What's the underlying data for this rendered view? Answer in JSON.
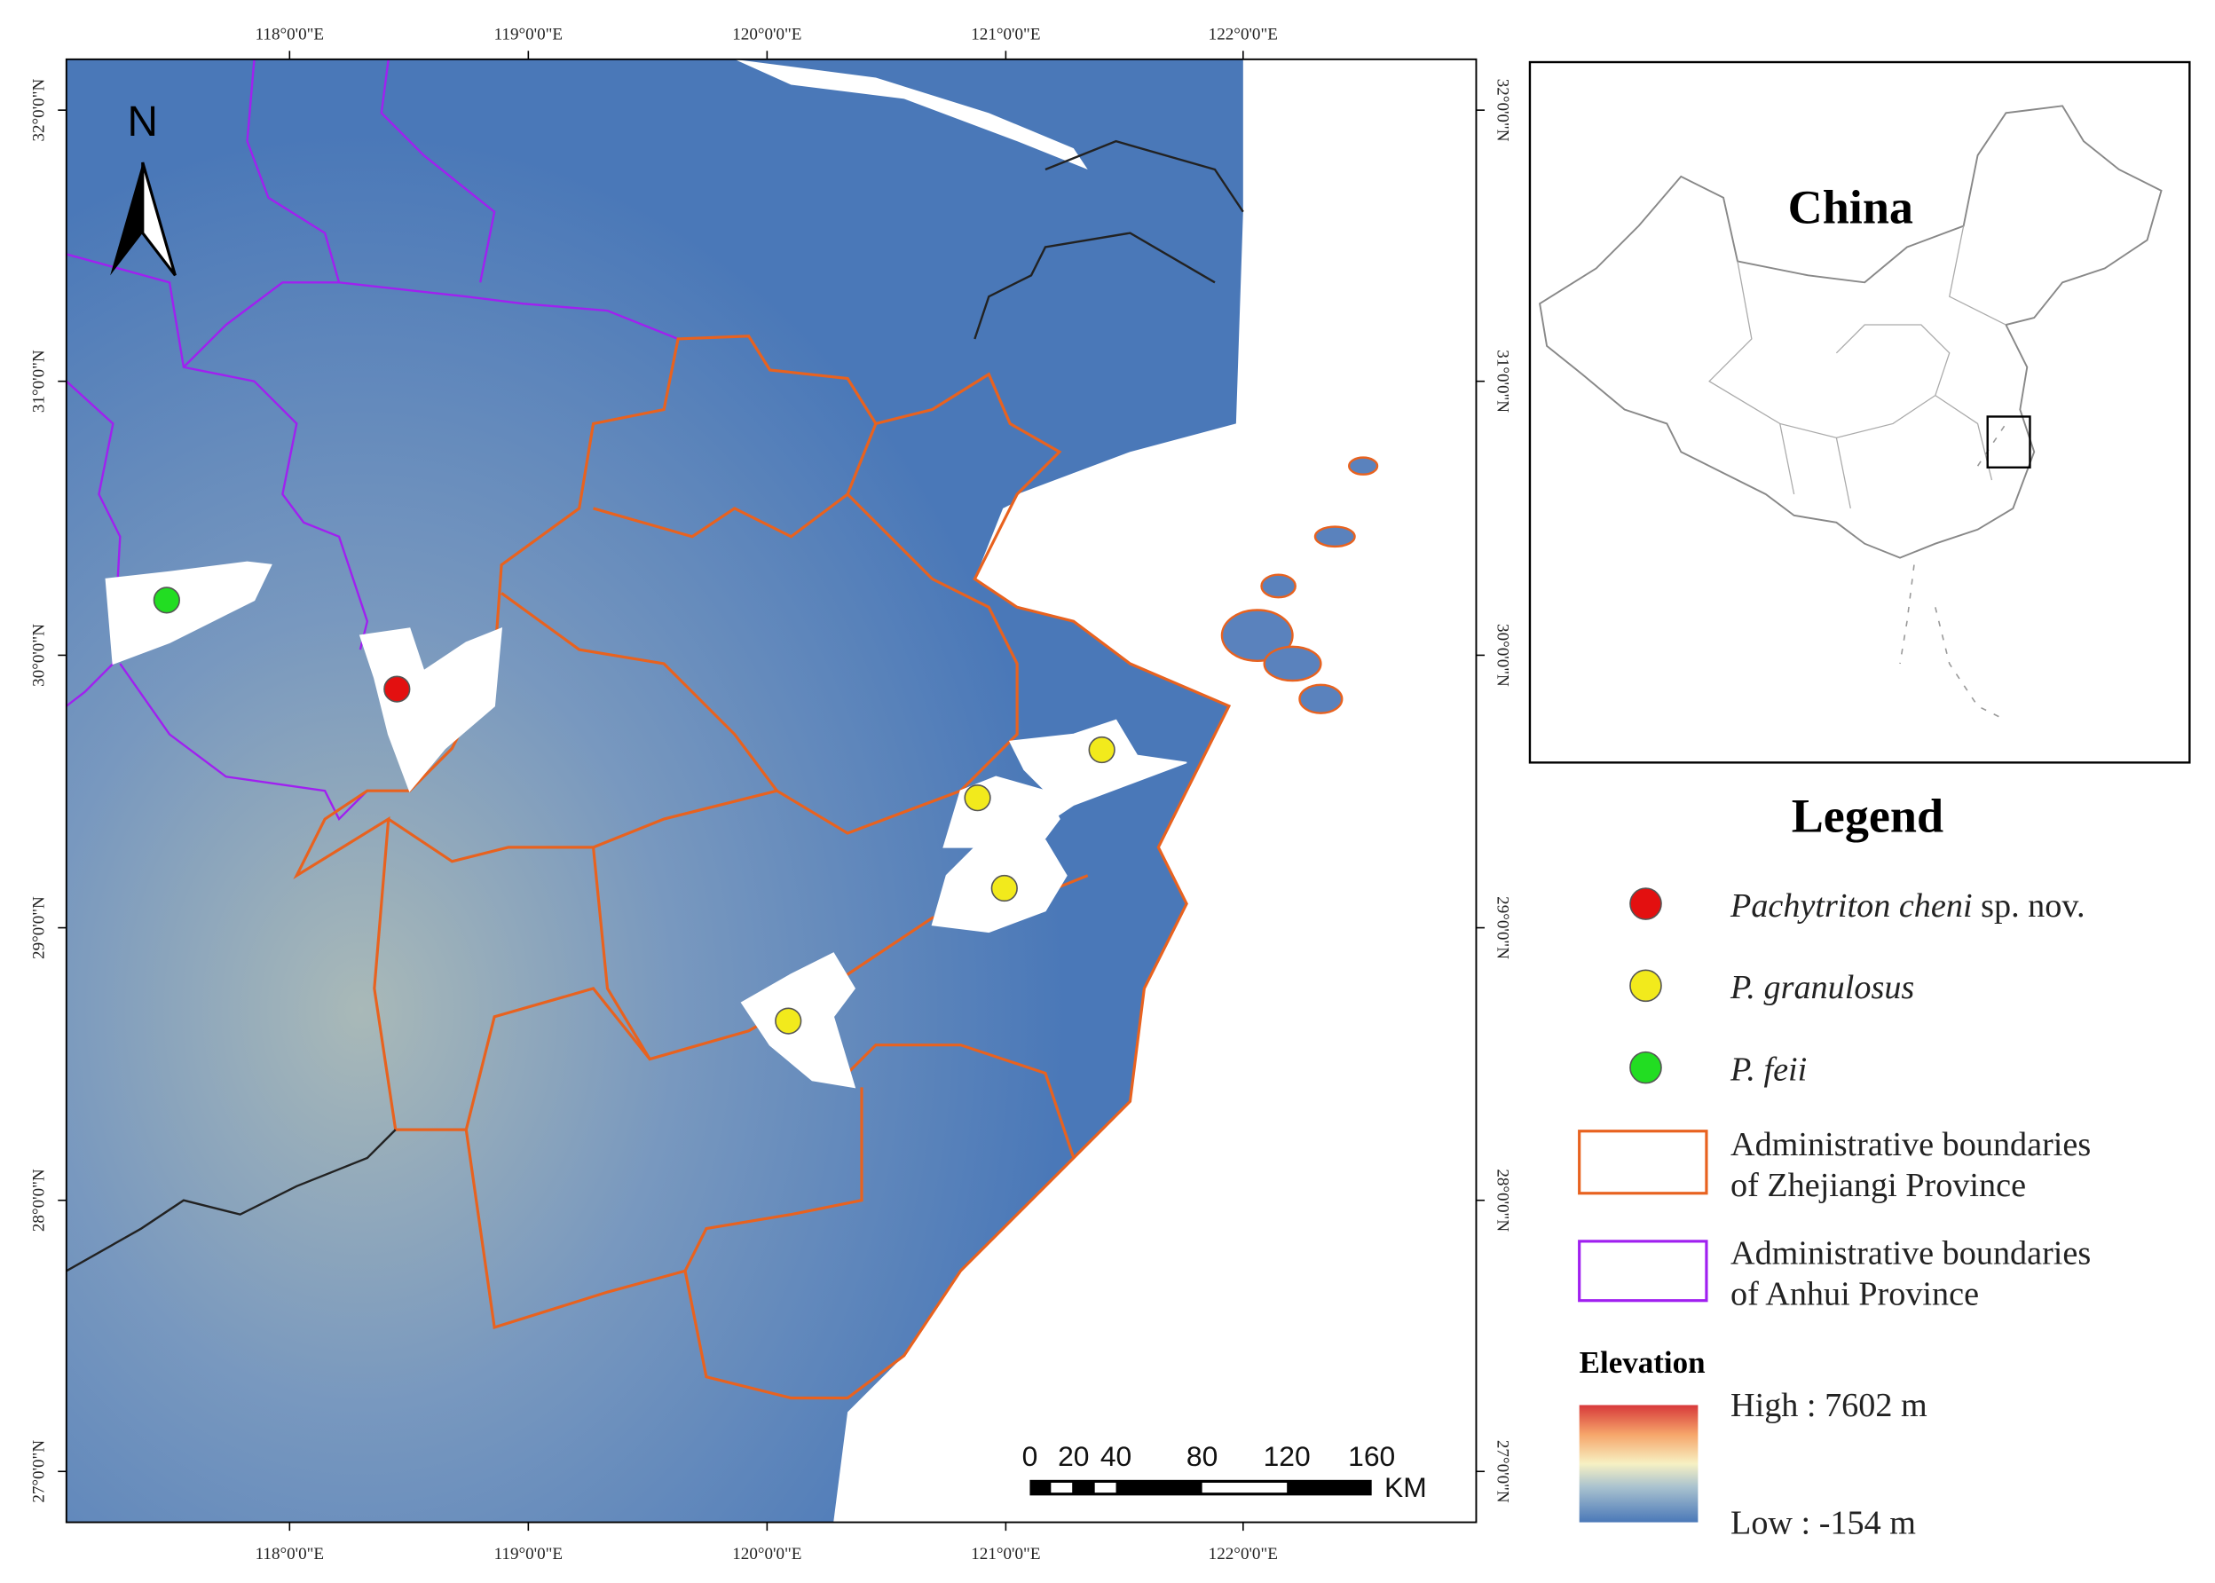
{
  "map": {
    "lon_labels": [
      "118°0'0\"E",
      "119°0'0\"E",
      "120°0'0\"E",
      "121°0'0\"E",
      "122°0'0\"E"
    ],
    "lat_labels": [
      "32°0'0\"N",
      "31°0'0\"N",
      "30°0'0\"N",
      "29°0'0\"N",
      "28°0'0\"N",
      "27°0'0\"N"
    ],
    "north": "N",
    "scale_bar": {
      "labels": [
        "0",
        "20",
        "40",
        "80",
        "120",
        "160"
      ],
      "unit": "KM"
    }
  },
  "inset": {
    "title": "China"
  },
  "legend": {
    "title": "Legend",
    "species": [
      {
        "italic": "Pachytriton cheni",
        "suffix": "sp. nov."
      },
      {
        "italic": "P. granulosus"
      },
      {
        "italic": "P. feii"
      }
    ],
    "boundaries": [
      {
        "line1": "Administrative boundaries",
        "line2": "of Zhejiangi Province"
      },
      {
        "line1": "Administrative boundaries",
        "line2": "of Anhui Province"
      }
    ],
    "elevation": {
      "title": "Elevation",
      "high": "High : 7602 m",
      "low": "Low : -154 m"
    }
  }
}
